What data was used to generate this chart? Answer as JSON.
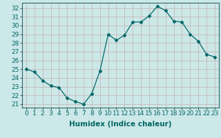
{
  "x": [
    0,
    1,
    2,
    3,
    4,
    5,
    6,
    7,
    8,
    9,
    10,
    11,
    12,
    13,
    14,
    15,
    16,
    17,
    18,
    19,
    20,
    21,
    22,
    23
  ],
  "y": [
    25.0,
    24.7,
    23.7,
    23.1,
    22.9,
    21.7,
    21.3,
    21.0,
    22.2,
    24.8,
    29.0,
    28.3,
    28.9,
    30.4,
    30.4,
    31.1,
    32.2,
    31.7,
    30.5,
    30.4,
    29.0,
    28.2,
    26.7,
    26.4
  ],
  "line_color": "#006666",
  "marker": "D",
  "marker_size": 2.5,
  "bg_color": "#cce8e8",
  "grid_color": "#c8b8b8",
  "xlabel": "Humidex (Indice chaleur)",
  "xlabel_fontsize": 7.5,
  "ylabel_ticks": [
    21,
    22,
    23,
    24,
    25,
    26,
    27,
    28,
    29,
    30,
    31,
    32
  ],
  "xtick_labels": [
    "0",
    "1",
    "2",
    "3",
    "4",
    "5",
    "6",
    "7",
    "8",
    "9",
    "10",
    "11",
    "12",
    "13",
    "14",
    "15",
    "16",
    "17",
    "18",
    "19",
    "20",
    "21",
    "22",
    "23"
  ],
  "ylim": [
    20.6,
    32.6
  ],
  "xlim": [
    -0.5,
    23.5
  ],
  "tick_fontsize": 6.5,
  "spine_color": "#336666",
  "title_color": "#006666"
}
